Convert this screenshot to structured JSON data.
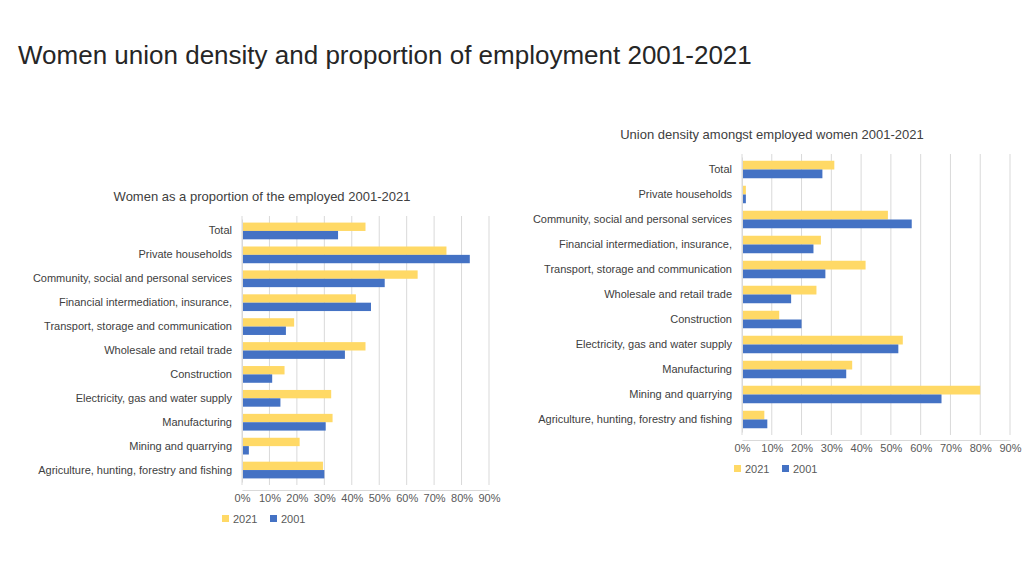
{
  "title": "Women union density and proportion of employment 2001-2021",
  "chart_data": [
    {
      "type": "bar",
      "orientation": "horizontal",
      "title": "Women as a proportion of the employed 2001-2021",
      "categories": [
        "Total",
        "Private households",
        "Community, social and personal services",
        "Financial intermediation, insurance,",
        "Transport, storage and communication",
        "Wholesale and retail trade",
        "Construction",
        "Electricity, gas and water supply",
        "Manufacturing",
        "Mining and quarrying",
        "Agriculture, hunting, forestry and fishing"
      ],
      "series": [
        {
          "name": "2021",
          "color": "#FFD966",
          "values": [
            45,
            74.5,
            64,
            41.5,
            19,
            45,
            15.5,
            32.5,
            33,
            21,
            29.5
          ]
        },
        {
          "name": "2001",
          "color": "#4472C4",
          "values": [
            35,
            83,
            52,
            47,
            16,
            37.5,
            11,
            14,
            30.5,
            2.5,
            30
          ]
        }
      ],
      "xlim": [
        0,
        90
      ],
      "xticks": [
        {
          "value": 0,
          "label": "0%"
        },
        {
          "value": 10,
          "label": "10%"
        },
        {
          "value": 20,
          "label": "20%"
        },
        {
          "value": 30,
          "label": "30%"
        },
        {
          "value": 40,
          "label": "40%"
        },
        {
          "value": 50,
          "label": "50%"
        },
        {
          "value": 60,
          "label": "60%"
        },
        {
          "value": 70,
          "label": "70%"
        },
        {
          "value": 80,
          "label": "80%"
        },
        {
          "value": 90,
          "label": "90%"
        }
      ],
      "grid": true,
      "legend": "bottom"
    },
    {
      "type": "bar",
      "orientation": "horizontal",
      "title": "Union density amongst employed women  2001-2021",
      "categories": [
        "Total",
        "Private households",
        "Community, social and personal services",
        "Financial intermediation, insurance,",
        "Transport, storage and communication",
        "Wholesale and retail trade",
        "Construction",
        "Electricity, gas and water supply",
        "Manufacturing",
        "Mining and quarrying",
        "Agriculture, hunting, forestry and fishing"
      ],
      "series": [
        {
          "name": "2021",
          "color": "#FFD966",
          "values": [
            31,
            1.3,
            49,
            26.5,
            41.5,
            25,
            12.5,
            54,
            37,
            80,
            7.5
          ]
        },
        {
          "name": "2001",
          "color": "#4472C4",
          "values": [
            27,
            1.3,
            57,
            24,
            28,
            16.5,
            20,
            52.5,
            35,
            67,
            8.5
          ]
        }
      ],
      "xlim": [
        0,
        90
      ],
      "xticks": [
        {
          "value": 0,
          "label": "0%"
        },
        {
          "value": 10,
          "label": "10%"
        },
        {
          "value": 20,
          "label": "20%"
        },
        {
          "value": 30,
          "label": "30%"
        },
        {
          "value": 40,
          "label": "40%"
        },
        {
          "value": 50,
          "label": "50%"
        },
        {
          "value": 60,
          "label": "60%"
        },
        {
          "value": 70,
          "label": "70%"
        },
        {
          "value": 80,
          "label": "80%"
        },
        {
          "value": 90,
          "label": "90%"
        }
      ],
      "grid": true,
      "legend": "bottom"
    }
  ]
}
